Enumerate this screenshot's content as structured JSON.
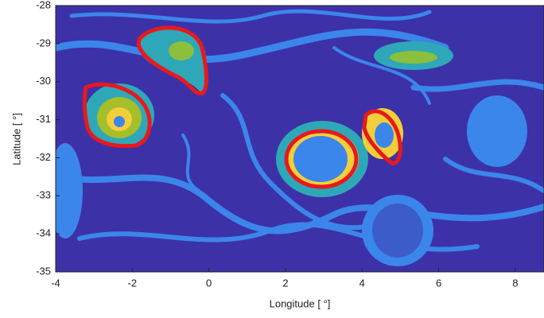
{
  "chart_data": {
    "type": "image",
    "xlabel": "Longitude [   °]",
    "ylabel": "Latitude [   °]",
    "xlim": [
      -4,
      8.75
    ],
    "xticks": [
      -4,
      -2,
      0,
      2,
      4,
      6,
      8
    ],
    "ylim": [
      -35,
      -28
    ],
    "yticks": [
      -35,
      -34,
      -33,
      -32,
      -31,
      -30,
      -29,
      -28
    ]
  }
}
